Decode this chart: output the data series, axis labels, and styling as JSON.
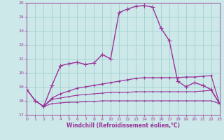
{
  "xlabel": "Windchill (Refroidissement éolien,°C)",
  "xlim": [
    0,
    23
  ],
  "ylim": [
    17,
    25
  ],
  "yticks": [
    17,
    18,
    19,
    20,
    21,
    22,
    23,
    24,
    25
  ],
  "xticks": [
    0,
    1,
    2,
    3,
    4,
    5,
    6,
    7,
    8,
    9,
    10,
    11,
    12,
    13,
    14,
    15,
    16,
    17,
    18,
    19,
    20,
    21,
    22,
    23
  ],
  "background_color": "#cce8e8",
  "grid_color": "#99cccc",
  "line_color": "#993399",
  "series": [
    {
      "x": [
        0,
        1,
        2,
        3,
        4,
        5,
        6,
        7,
        8,
        9,
        10,
        11,
        12,
        13,
        14
      ],
      "y": [
        18.8,
        18.0,
        17.6,
        19.1,
        20.5,
        20.65,
        20.75,
        20.6,
        20.7,
        21.3,
        21.0,
        24.3,
        24.55,
        24.75,
        24.8
      ],
      "marker": "+",
      "markersize": 4,
      "linewidth": 1.0
    },
    {
      "x": [
        14,
        15,
        16,
        17,
        18,
        19,
        20,
        21,
        22,
        23
      ],
      "y": [
        24.8,
        24.7,
        23.2,
        22.3,
        19.4,
        19.0,
        19.3,
        19.1,
        18.8,
        17.8
      ],
      "marker": "+",
      "markersize": 4,
      "linewidth": 1.0
    },
    {
      "x": [
        0,
        1,
        2,
        3,
        4,
        5,
        6,
        7,
        8,
        9,
        10,
        11,
        12,
        13,
        14,
        15,
        16,
        17,
        18,
        19,
        20,
        21,
        22,
        23
      ],
      "y": [
        18.8,
        18.0,
        17.6,
        18.2,
        18.5,
        18.7,
        18.9,
        19.0,
        19.1,
        19.2,
        19.3,
        19.4,
        19.5,
        19.6,
        19.65,
        19.65,
        19.65,
        19.65,
        19.65,
        19.7,
        19.7,
        19.75,
        19.8,
        17.8
      ],
      "marker": "+",
      "markersize": 3,
      "linewidth": 0.9
    },
    {
      "x": [
        1,
        2,
        3,
        4,
        5,
        6,
        7,
        8,
        9,
        10,
        11,
        12,
        13,
        14,
        15,
        16,
        17,
        18,
        19,
        20,
        21,
        22,
        23
      ],
      "y": [
        18.0,
        17.6,
        17.8,
        17.85,
        17.9,
        17.9,
        17.95,
        17.95,
        18.0,
        18.0,
        18.0,
        18.0,
        18.0,
        18.0,
        18.0,
        18.0,
        18.0,
        18.0,
        18.0,
        18.0,
        18.0,
        18.0,
        17.8
      ],
      "marker": "+",
      "markersize": 2,
      "linewidth": 0.8
    },
    {
      "x": [
        1,
        2,
        3,
        4,
        5,
        6,
        7,
        8,
        9,
        10,
        11,
        12,
        13,
        14,
        15,
        16,
        17,
        18,
        19,
        20,
        21,
        22,
        23
      ],
      "y": [
        18.0,
        17.6,
        18.1,
        18.2,
        18.3,
        18.4,
        18.45,
        18.5,
        18.55,
        18.6,
        18.6,
        18.6,
        18.65,
        18.65,
        18.65,
        18.65,
        18.65,
        18.65,
        18.65,
        18.65,
        18.7,
        18.75,
        17.8
      ],
      "marker": "+",
      "markersize": 2,
      "linewidth": 0.8
    }
  ]
}
